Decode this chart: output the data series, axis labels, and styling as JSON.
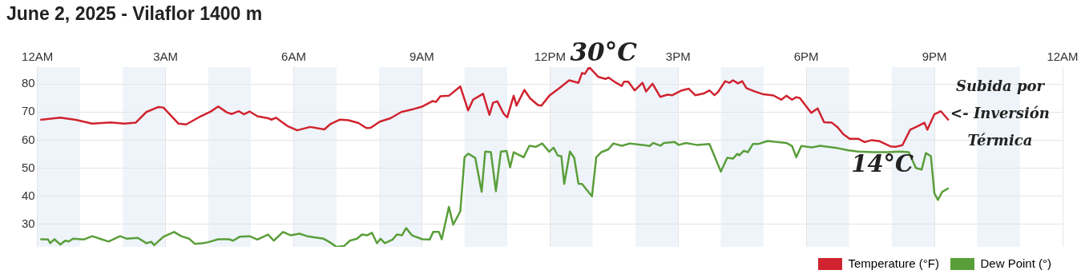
{
  "chart_data": {
    "type": "line",
    "title": "June 2, 2025 - Vilaflor 1400 m",
    "xlim": [
      "2025-06-02T00:00",
      "2025-06-03T00:00"
    ],
    "xticks": [
      {
        "value": "2025-06-02T00:00",
        "label": "12AM"
      },
      {
        "value": "2025-06-02T03:00",
        "label": "3AM"
      },
      {
        "value": "2025-06-02T06:00",
        "label": "6AM"
      },
      {
        "value": "2025-06-02T09:00",
        "label": "9AM"
      },
      {
        "value": "2025-06-02T12:00",
        "label": "12PM"
      },
      {
        "value": "2025-06-02T15:00",
        "label": "3PM"
      },
      {
        "value": "2025-06-02T18:00",
        "label": "6PM"
      },
      {
        "value": "2025-06-02T21:00",
        "label": "9PM"
      },
      {
        "value": "2025-06-03T00:00",
        "label": "12AM"
      }
    ],
    "ylim": [
      22,
      86
    ],
    "yticks": [
      30,
      40,
      50,
      60,
      70,
      80
    ],
    "grid": true,
    "legend": "bottom right",
    "bands": [
      {
        "axis": "x",
        "from": "2025-06-02T00:00",
        "to": "2025-06-02T01:00",
        "color": "#eef4fa"
      },
      {
        "axis": "x",
        "from": "2025-06-02T02:00",
        "to": "2025-06-02T03:00",
        "color": "#eef4fa"
      },
      {
        "axis": "x",
        "from": "2025-06-02T04:00",
        "to": "2025-06-02T05:00",
        "color": "#eef4fa"
      },
      {
        "axis": "x",
        "from": "2025-06-02T06:00",
        "to": "2025-06-02T07:00",
        "color": "#eef4fa"
      },
      {
        "axis": "x",
        "from": "2025-06-02T08:00",
        "to": "2025-06-02T09:00",
        "color": "#eef4fa"
      },
      {
        "axis": "x",
        "from": "2025-06-02T10:00",
        "to": "2025-06-02T11:00",
        "color": "#eef4fa"
      },
      {
        "axis": "x",
        "from": "2025-06-02T12:00",
        "to": "2025-06-02T13:00",
        "color": "#eef4fa"
      },
      {
        "axis": "x",
        "from": "2025-06-02T14:00",
        "to": "2025-06-02T15:00",
        "color": "#eef4fa"
      },
      {
        "axis": "x",
        "from": "2025-06-02T16:00",
        "to": "2025-06-02T17:00",
        "color": "#eef4fa"
      },
      {
        "axis": "x",
        "from": "2025-06-02T18:00",
        "to": "2025-06-02T19:00",
        "color": "#eef4fa"
      },
      {
        "axis": "x",
        "from": "2025-06-02T20:00",
        "to": "2025-06-02T21:00",
        "color": "#eef4fa"
      },
      {
        "axis": "x",
        "from": "2025-06-02T22:00",
        "to": "2025-06-02T23:00",
        "color": "#eef4fa"
      }
    ],
    "annotations": [
      {
        "text": "30°C",
        "x": "2025-06-02T12:55",
        "y": 86
      },
      {
        "text": "14°C",
        "x": "2025-06-02T20:05",
        "y": 57.6
      },
      "Subida por\n<- Inversión\nTérmica"
    ],
    "series": [
      {
        "name": "Temperature (°F)",
        "color": "#d0232f",
        "x": [
          "2025-06-02T00:04",
          "2025-06-02T00:32",
          "2025-06-02T00:54",
          "2025-06-02T01:17",
          "2025-06-02T01:43",
          "2025-06-02T02:02",
          "2025-06-02T02:18",
          "2025-06-02T02:33",
          "2025-06-02T02:50",
          "2025-06-02T02:57",
          "2025-06-02T03:18",
          "2025-06-02T03:29",
          "2025-06-02T03:48",
          "2025-06-02T04:03",
          "2025-06-02T04:14",
          "2025-06-02T04:26",
          "2025-06-02T04:33",
          "2025-06-02T04:43",
          "2025-06-02T04:50",
          "2025-06-02T04:58",
          "2025-06-02T05:09",
          "2025-06-02T05:24",
          "2025-06-02T05:29",
          "2025-06-02T05:35",
          "2025-06-02T05:52",
          "2025-06-02T06:05",
          "2025-06-02T06:23",
          "2025-06-02T06:43",
          "2025-06-02T06:51",
          "2025-06-02T07:05",
          "2025-06-02T07:17",
          "2025-06-02T07:31",
          "2025-06-02T07:42",
          "2025-06-02T07:48",
          "2025-06-02T08:01",
          "2025-06-02T08:16",
          "2025-06-02T08:31",
          "2025-06-02T08:46",
          "2025-06-02T09:01",
          "2025-06-02T09:15",
          "2025-06-02T09:20",
          "2025-06-02T09:26",
          "2025-06-02T09:38",
          "2025-06-02T09:54",
          "2025-06-02T10:05",
          "2025-06-02T10:12",
          "2025-06-02T10:26",
          "2025-06-02T10:35",
          "2025-06-02T10:40",
          "2025-06-02T10:46",
          "2025-06-02T10:55",
          "2025-06-02T11:00",
          "2025-06-02T11:09",
          "2025-06-02T11:13",
          "2025-06-02T11:24",
          "2025-06-02T11:32",
          "2025-06-02T11:43",
          "2025-06-02T11:48",
          "2025-06-02T11:59",
          "2025-06-02T12:14",
          "2025-06-02T12:27",
          "2025-06-02T12:40",
          "2025-06-02T12:45",
          "2025-06-02T12:49",
          "2025-06-02T12:55",
          "2025-06-02T13:08",
          "2025-06-02T13:18",
          "2025-06-02T13:22",
          "2025-06-02T13:33",
          "2025-06-02T13:41",
          "2025-06-02T13:44",
          "2025-06-02T13:50",
          "2025-06-02T13:59",
          "2025-06-02T14:10",
          "2025-06-02T14:15",
          "2025-06-02T14:24",
          "2025-06-02T14:35",
          "2025-06-02T14:45",
          "2025-06-02T14:52",
          "2025-06-02T15:05",
          "2025-06-02T15:15",
          "2025-06-02T15:24",
          "2025-06-02T15:36",
          "2025-06-02T15:44",
          "2025-06-02T15:51",
          "2025-06-02T15:56",
          "2025-06-02T16:06",
          "2025-06-02T16:12",
          "2025-06-02T16:17",
          "2025-06-02T16:24",
          "2025-06-02T16:30",
          "2025-06-02T16:36",
          "2025-06-02T16:48",
          "2025-06-02T17:00",
          "2025-06-02T17:14",
          "2025-06-02T17:25",
          "2025-06-02T17:32",
          "2025-06-02T17:40",
          "2025-06-02T17:46",
          "2025-06-02T17:51",
          "2025-06-02T18:07",
          "2025-06-02T18:16",
          "2025-06-02T18:25",
          "2025-06-02T18:36",
          "2025-06-02T18:44",
          "2025-06-02T18:52",
          "2025-06-02T19:01",
          "2025-06-02T19:13",
          "2025-06-02T19:22",
          "2025-06-02T19:32",
          "2025-06-02T19:43",
          "2025-06-02T19:58",
          "2025-06-02T20:05",
          "2025-06-02T20:15",
          "2025-06-02T20:26",
          "2025-06-02T20:35",
          "2025-06-02T20:46",
          "2025-06-02T20:50",
          "2025-06-02T21:00",
          "2025-06-02T21:09",
          "2025-06-02T21:20"
        ],
        "values": [
          67.2,
          68.0,
          67.2,
          65.9,
          66.3,
          65.9,
          66.2,
          70,
          71.8,
          71.6,
          65.9,
          65.6,
          68.3,
          70.1,
          72.0,
          69.9,
          69.3,
          70.3,
          69.2,
          70.2,
          68.5,
          67.8,
          67.3,
          68,
          64.9,
          63.5,
          64.7,
          63.8,
          65.6,
          67.3,
          67.1,
          66.1,
          64.3,
          64.4,
          66.6,
          67.8,
          70,
          70.9,
          72,
          73.9,
          73.6,
          75.6,
          75.8,
          79.1,
          70.6,
          74.4,
          76.5,
          69,
          73.3,
          73.8,
          69.4,
          68.1,
          75.8,
          72.3,
          77.9,
          74.9,
          72.5,
          72.3,
          75.8,
          78.7,
          81.3,
          80.4,
          83.9,
          83.6,
          86,
          82.5,
          81.8,
          82.3,
          80.4,
          79.3,
          80.8,
          80.8,
          77.7,
          80.4,
          77.3,
          80.1,
          75.4,
          76.2,
          76,
          77.7,
          78.3,
          76,
          76.6,
          77.7,
          76,
          77.1,
          81,
          80.4,
          81.3,
          80.2,
          81,
          78.5,
          77.3,
          76.3,
          75.9,
          74.4,
          75.8,
          74.4,
          75.3,
          75,
          69.7,
          71.3,
          66.4,
          66.2,
          64.6,
          62.1,
          60.5,
          60.5,
          59.3,
          60,
          59.6,
          57.8,
          57.6,
          58.2,
          63.7,
          64.8,
          66.2,
          63.7,
          69.2,
          70.3,
          67.1
        ]
      },
      {
        "name": "Dew Point (°)",
        "color": "#5a9e3a",
        "x": [
          "2025-06-02T00:04",
          "2025-06-02T00:15",
          "2025-06-02T00:18",
          "2025-06-02T00:24",
          "2025-06-02T00:32",
          "2025-06-02T00:39",
          "2025-06-02T00:44",
          "2025-06-02T00:50",
          "2025-06-02T01:05",
          "2025-06-02T01:17",
          "2025-06-02T01:30",
          "2025-06-02T01:40",
          "2025-06-02T01:56",
          "2025-06-02T02:06",
          "2025-06-02T02:21",
          "2025-06-02T02:33",
          "2025-06-02T02:40",
          "2025-06-02T02:44",
          "2025-06-02T02:57",
          "2025-06-02T03:12",
          "2025-06-02T03:22",
          "2025-06-02T03:33",
          "2025-06-02T03:41",
          "2025-06-02T03:52",
          "2025-06-02T03:59",
          "2025-06-02T04:14",
          "2025-06-02T04:29",
          "2025-06-02T04:35",
          "2025-06-02T04:44",
          "2025-06-02T04:58",
          "2025-06-02T05:09",
          "2025-06-02T05:24",
          "2025-06-02T05:32",
          "2025-06-02T05:45",
          "2025-06-02T05:56",
          "2025-06-02T06:08",
          "2025-06-02T06:19",
          "2025-06-02T06:42",
          "2025-06-02T06:51",
          "2025-06-02T07:00",
          "2025-06-02T07:11",
          "2025-06-02T07:19",
          "2025-06-02T07:29",
          "2025-06-02T07:36",
          "2025-06-02T07:43",
          "2025-06-02T07:50",
          "2025-06-02T07:57",
          "2025-06-02T08:02",
          "2025-06-02T08:08",
          "2025-06-02T08:19",
          "2025-06-02T08:25",
          "2025-06-02T08:32",
          "2025-06-02T08:38",
          "2025-06-02T08:46",
          "2025-06-02T09:01",
          "2025-06-02T09:11",
          "2025-06-02T09:16",
          "2025-06-02T09:24",
          "2025-06-02T09:28",
          "2025-06-02T09:38",
          "2025-06-02T09:44",
          "2025-06-02T09:54",
          "2025-06-02T10:00",
          "2025-06-02T10:05",
          "2025-06-02T10:15",
          "2025-06-02T10:24",
          "2025-06-02T10:29",
          "2025-06-02T10:37",
          "2025-06-02T10:44",
          "2025-06-02T10:51",
          "2025-06-02T10:59",
          "2025-06-02T11:04",
          "2025-06-02T11:09",
          "2025-06-02T11:23",
          "2025-06-02T11:31",
          "2025-06-02T11:40",
          "2025-06-02T11:49",
          "2025-06-02T11:59",
          "2025-06-02T12:05",
          "2025-06-02T12:11",
          "2025-06-02T12:16",
          "2025-06-02T12:20",
          "2025-06-02T12:28",
          "2025-06-02T12:34",
          "2025-06-02T12:40",
          "2025-06-02T12:45",
          "2025-06-02T12:59",
          "2025-06-02T13:05",
          "2025-06-02T13:12",
          "2025-06-02T13:22",
          "2025-06-02T13:29",
          "2025-06-02T13:41",
          "2025-06-02T13:52",
          "2025-06-02T14:10",
          "2025-06-02T14:20",
          "2025-06-02T14:25",
          "2025-06-02T14:35",
          "2025-06-02T14:40",
          "2025-06-02T14:55",
          "2025-06-02T15:01",
          "2025-06-02T15:11",
          "2025-06-02T15:26",
          "2025-06-02T15:44",
          "2025-06-02T16:00",
          "2025-06-02T16:09",
          "2025-06-02T16:17",
          "2025-06-02T16:23",
          "2025-06-02T16:26",
          "2025-06-02T16:32",
          "2025-06-02T16:38",
          "2025-06-02T16:45",
          "2025-06-02T16:52",
          "2025-06-02T17:06",
          "2025-06-02T17:19",
          "2025-06-02T17:32",
          "2025-06-02T17:40",
          "2025-06-02T17:46",
          "2025-06-02T17:53",
          "2025-06-02T18:08",
          "2025-06-02T18:19",
          "2025-06-02T18:30",
          "2025-06-02T18:41",
          "2025-06-02T18:58",
          "2025-06-02T19:13",
          "2025-06-02T19:35",
          "2025-06-02T19:54",
          "2025-06-02T20:12",
          "2025-06-02T20:24",
          "2025-06-02T20:34",
          "2025-06-02T20:42",
          "2025-06-02T20:48",
          "2025-06-02T20:55",
          "2025-06-02T21:00",
          "2025-06-02T21:05",
          "2025-06-02T21:11",
          "2025-06-02T21:20"
        ],
        "values": [
          24.7,
          24.6,
          23.3,
          24.7,
          22.8,
          24.2,
          23.9,
          24.9,
          24.6,
          25.8,
          24.7,
          23.9,
          25.8,
          24.9,
          25.2,
          23.3,
          23.8,
          22.6,
          25.6,
          27.3,
          25.8,
          24.9,
          23.1,
          23.3,
          23.6,
          24.7,
          24.7,
          24.2,
          25.6,
          25.8,
          24.6,
          26.4,
          24.2,
          27.3,
          26.1,
          26.7,
          25.8,
          24.9,
          23.6,
          22.0,
          22.3,
          24.2,
          24.9,
          26.4,
          26.1,
          27.0,
          23.3,
          24.9,
          23.3,
          24.6,
          26.4,
          26.1,
          28.7,
          26.1,
          24.7,
          24.6,
          27.3,
          27.3,
          24.7,
          36.2,
          29.9,
          34.6,
          53.9,
          55.2,
          53.7,
          41.6,
          55.9,
          55.7,
          41.8,
          55.9,
          56.1,
          50.3,
          55.7,
          53.9,
          58.0,
          57.6,
          58.8,
          55.9,
          57.3,
          54.5,
          54.3,
          44.4,
          55.9,
          53.7,
          44.5,
          44.4,
          40.0,
          53.9,
          55.7,
          56.7,
          58.8,
          58.0,
          58.8,
          58.3,
          57.9,
          59.0,
          58.0,
          59.0,
          59.3,
          58.3,
          59.0,
          58.3,
          58.6,
          48.8,
          53.7,
          53.4,
          55.1,
          54.6,
          56.2,
          55.7,
          58.6,
          58.6,
          59.7,
          59.3,
          59.0,
          57.9,
          53.9,
          57.9,
          57.4,
          58.0,
          57.6,
          57.3,
          56.4,
          55.9,
          55.7,
          55.7,
          55.9,
          55.7,
          50.1,
          49.5,
          55.4,
          54.3,
          41.0,
          38.7,
          41.6,
          42.9
        ]
      }
    ]
  }
}
